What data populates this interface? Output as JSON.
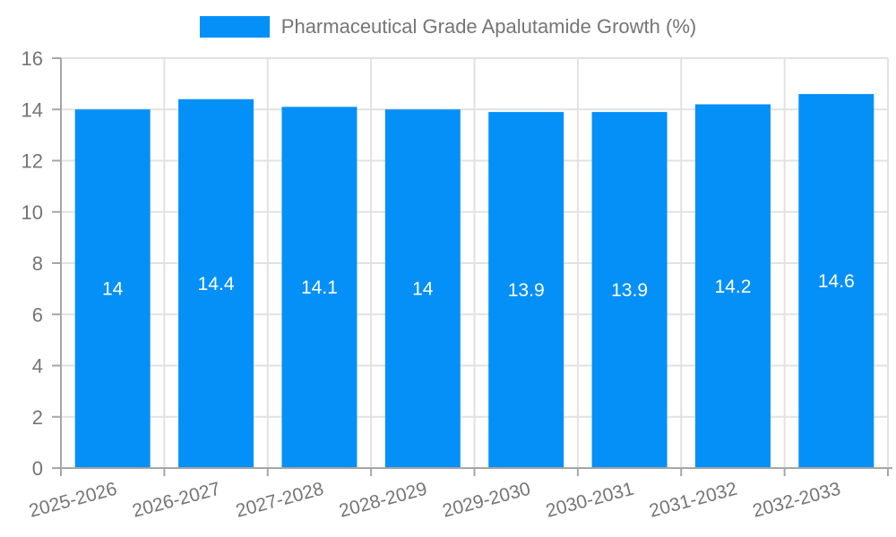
{
  "legend": {
    "label": "Pharmaceutical Grade Apalutamide Growth (%)"
  },
  "chart_data": {
    "type": "bar",
    "title": "Pharmaceutical Grade Apalutamide Growth (%)",
    "categories": [
      "2025-2026",
      "2026-2027",
      "2027-2028",
      "2028-2029",
      "2029-2030",
      "2030-2031",
      "2031-2032",
      "2032-2033"
    ],
    "values": [
      14,
      14.4,
      14.1,
      14,
      13.9,
      13.9,
      14.2,
      14.6
    ],
    "value_labels": [
      "14",
      "14.4",
      "14.1",
      "14",
      "13.9",
      "13.9",
      "14.2",
      "14.6"
    ],
    "xlabel": "",
    "ylabel": "",
    "ylim": [
      0,
      16
    ],
    "ytick_step": 2,
    "yticks": [
      "0",
      "2",
      "4",
      "6",
      "8",
      "10",
      "12",
      "14",
      "16"
    ],
    "grid": true,
    "legend_position": "top",
    "colors": {
      "bar": "#0590f8",
      "grid": "#e2e2e2",
      "axis": "#a6a6a6",
      "tick_text": "#757575",
      "value_text": "#ffffff"
    }
  }
}
